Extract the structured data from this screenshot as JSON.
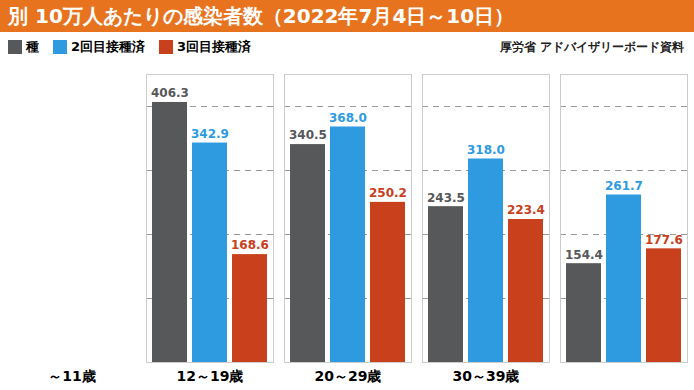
{
  "chart_data": {
    "type": "bar",
    "title": "別 10万人あたりの感染者数（2022年7月4日～10日）",
    "source": "厚労省 アドバイザリーボード資料",
    "categories": [
      "～11歳",
      "12～19歳",
      "20～29歳",
      "30～39歳",
      null
    ],
    "series": [
      {
        "name": "種",
        "color": "#56585a",
        "values": [
          null,
          406.3,
          340.5,
          243.5,
          154.4
        ],
        "value_labels": [
          null,
          "406.3",
          "340.5",
          "243.5",
          "154.4"
        ]
      },
      {
        "name": "2回目接種済",
        "color": "#2e9be0",
        "values": [
          null,
          342.9,
          368.0,
          318.0,
          261.7
        ],
        "value_labels": [
          null,
          "342.9",
          "368.0",
          "318.0",
          "261.7"
        ]
      },
      {
        "name": "3回目接種済",
        "color": "#c8401c",
        "values": [
          null,
          168.6,
          250.2,
          223.4,
          177.6
        ],
        "value_labels": [
          null,
          "168.6",
          "250.2",
          "223.4",
          "177.6"
        ]
      }
    ],
    "ylim": [
      0,
      450
    ],
    "yticks": [
      0,
      100,
      200,
      300,
      400
    ],
    "grid": true,
    "data_labels": true,
    "tick_labels": "x",
    "legend": "top-left"
  }
}
